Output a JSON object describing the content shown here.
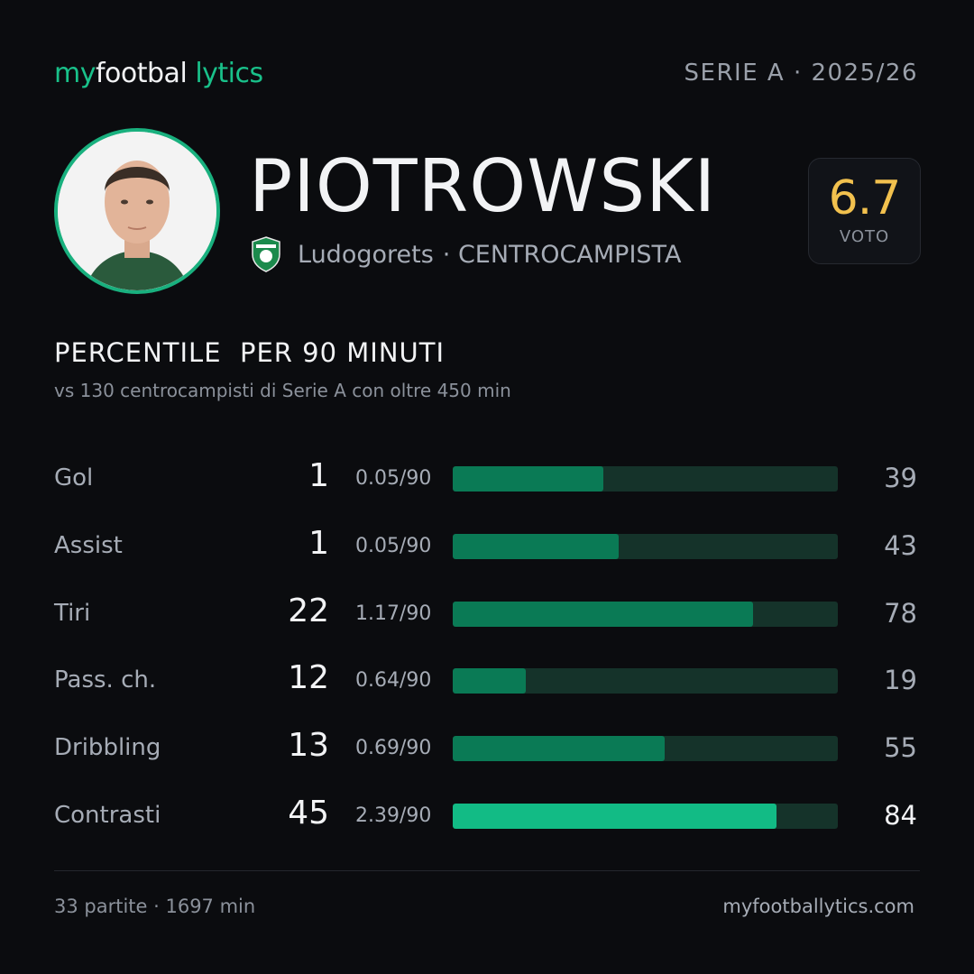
{
  "brand": {
    "part1": "my",
    "part2": "footbal",
    "part3": "lytics"
  },
  "league": "SERIE A · 2025/26",
  "player": {
    "name": "PIOTROWSKI",
    "club": "Ludogorets",
    "role": "· CENTROCAMPISTA",
    "rating": 6.7,
    "rating_label": "VOTO"
  },
  "section": {
    "title": "PERCENTILE  PER 90 MINUTI",
    "subtitle": "vs 130 centrocampisti  di Serie A con oltre 450 min"
  },
  "stats": [
    {
      "label": "Gol",
      "total": 1,
      "per90": "0.05/90",
      "percentile": 39,
      "color": "#0a7a55"
    },
    {
      "label": "Assist",
      "total": 1,
      "per90": "0.05/90",
      "percentile": 43,
      "color": "#0a7a55"
    },
    {
      "label": "Tiri",
      "total": 22,
      "per90": "1.17/90",
      "percentile": 78,
      "color": "#0a7a55"
    },
    {
      "label": "Pass. ch.",
      "total": 12,
      "per90": "0.64/90",
      "percentile": 19,
      "color": "#0a7a55"
    },
    {
      "label": "Dribbling",
      "total": 13,
      "per90": "0.69/90",
      "percentile": 55,
      "color": "#0a7a55"
    },
    {
      "label": "Contrasti",
      "total": 45,
      "per90": "2.39/90",
      "percentile": 84,
      "color": "#12bb85"
    }
  ],
  "footer": {
    "left": "33 partite · 1697 min",
    "right": "myfootballytics.com"
  }
}
